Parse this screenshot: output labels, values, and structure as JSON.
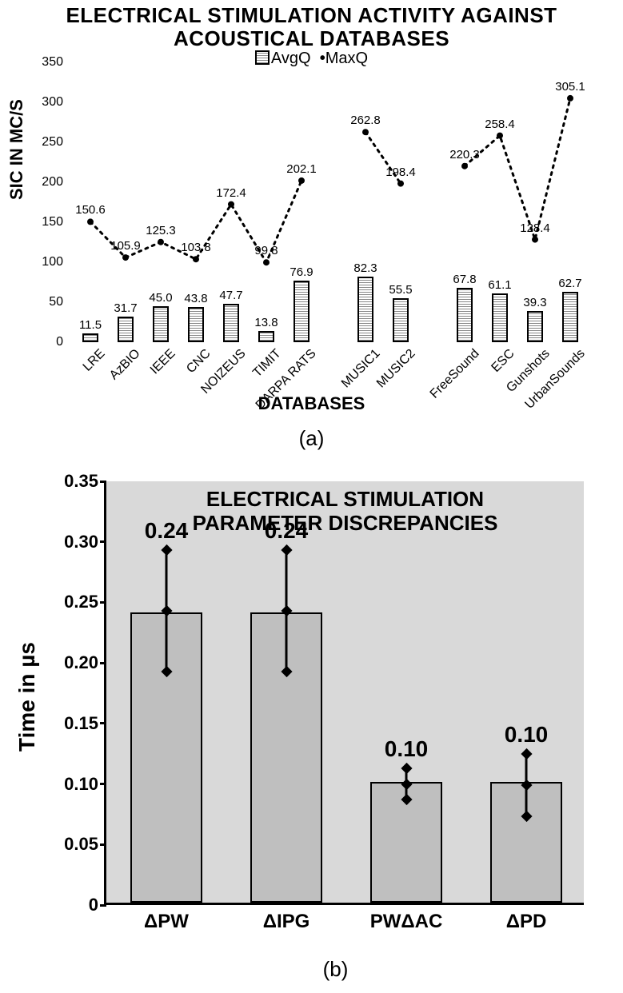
{
  "chartA": {
    "type": "bar+line",
    "title_line1": "ELECTRICAL STIMULATION ACTIVITY AGAINST",
    "title_line2": "ACOUSTICAL DATABASES",
    "ylabel": "SIC IN MC/S",
    "xlabel": "DATABASES",
    "subfig": "(a)",
    "legend_avg": "AvgQ",
    "legend_max": "MaxQ",
    "ylim": [
      0,
      350
    ],
    "ytick_step": 50,
    "yticks": [
      "0",
      "50",
      "100",
      "150",
      "200",
      "250",
      "300",
      "350"
    ],
    "bar_border": "#000000",
    "bar_fill_pattern": "horizontal-hatch",
    "line_color": "#000000",
    "line_style": "dotted",
    "marker": "dot",
    "background": "#ffffff",
    "group_gap_after": [
      6,
      8
    ],
    "categories": [
      "LRE",
      "AzBIO",
      "IEEE",
      "CNC",
      "NOIZEUS",
      "TIMIT",
      "DARPA RATS",
      "MUSIC1",
      "MUSIC2",
      "FreeSound",
      "ESC",
      "Gunshots",
      "UrbanSounds"
    ],
    "avg": [
      11.5,
      31.7,
      45.0,
      43.8,
      47.7,
      13.8,
      76.9,
      82.3,
      55.5,
      67.8,
      61.1,
      39.3,
      62.7
    ],
    "max": [
      150.6,
      105.9,
      125.3,
      103.8,
      172.4,
      99.8,
      202.1,
      262.8,
      198.4,
      220.3,
      258.4,
      128.4,
      305.1
    ],
    "avg_labels": [
      "11.5",
      "31.7",
      "45.0",
      "43.8",
      "47.7",
      "13.8",
      "76.9",
      "82.3",
      "55.5",
      "67.8",
      "61.1",
      "39.3",
      "62.7"
    ],
    "max_labels": [
      "150.6",
      "105.9",
      "125.3",
      "103.8",
      "172.4",
      "99.8",
      "202.1",
      "262.8",
      "198.4",
      "220.3",
      "258.4",
      "128.4",
      "305.1"
    ]
  },
  "chartB": {
    "type": "bar-error",
    "title_line1": "ELECTRICAL STIMULATION",
    "title_line2": "PARAMETER DISCREPANCIES",
    "ylabel": "Time in µs",
    "subfig": "(b)",
    "ylim": [
      0,
      0.35
    ],
    "ytick_step": 0.05,
    "yticks": [
      "0",
      "0.05",
      "0.10",
      "0.15",
      "0.20",
      "0.25",
      "0.30",
      "0.35"
    ],
    "plot_bg": "#d9d9d9",
    "bar_fill": "#bfbfbf",
    "bar_border": "#000000",
    "error_color": "#000000",
    "error_marker": "diamond",
    "categories": [
      "ΔPW",
      "ΔIPG",
      "PWΔAC",
      "ΔPD"
    ],
    "values": [
      0.24,
      0.24,
      0.1,
      0.1
    ],
    "value_labels": [
      "0.24",
      "0.24",
      "0.10",
      "0.10"
    ],
    "err_low": [
      0.193,
      0.193,
      0.087,
      0.073
    ],
    "err_high": [
      0.293,
      0.293,
      0.113,
      0.125
    ]
  }
}
